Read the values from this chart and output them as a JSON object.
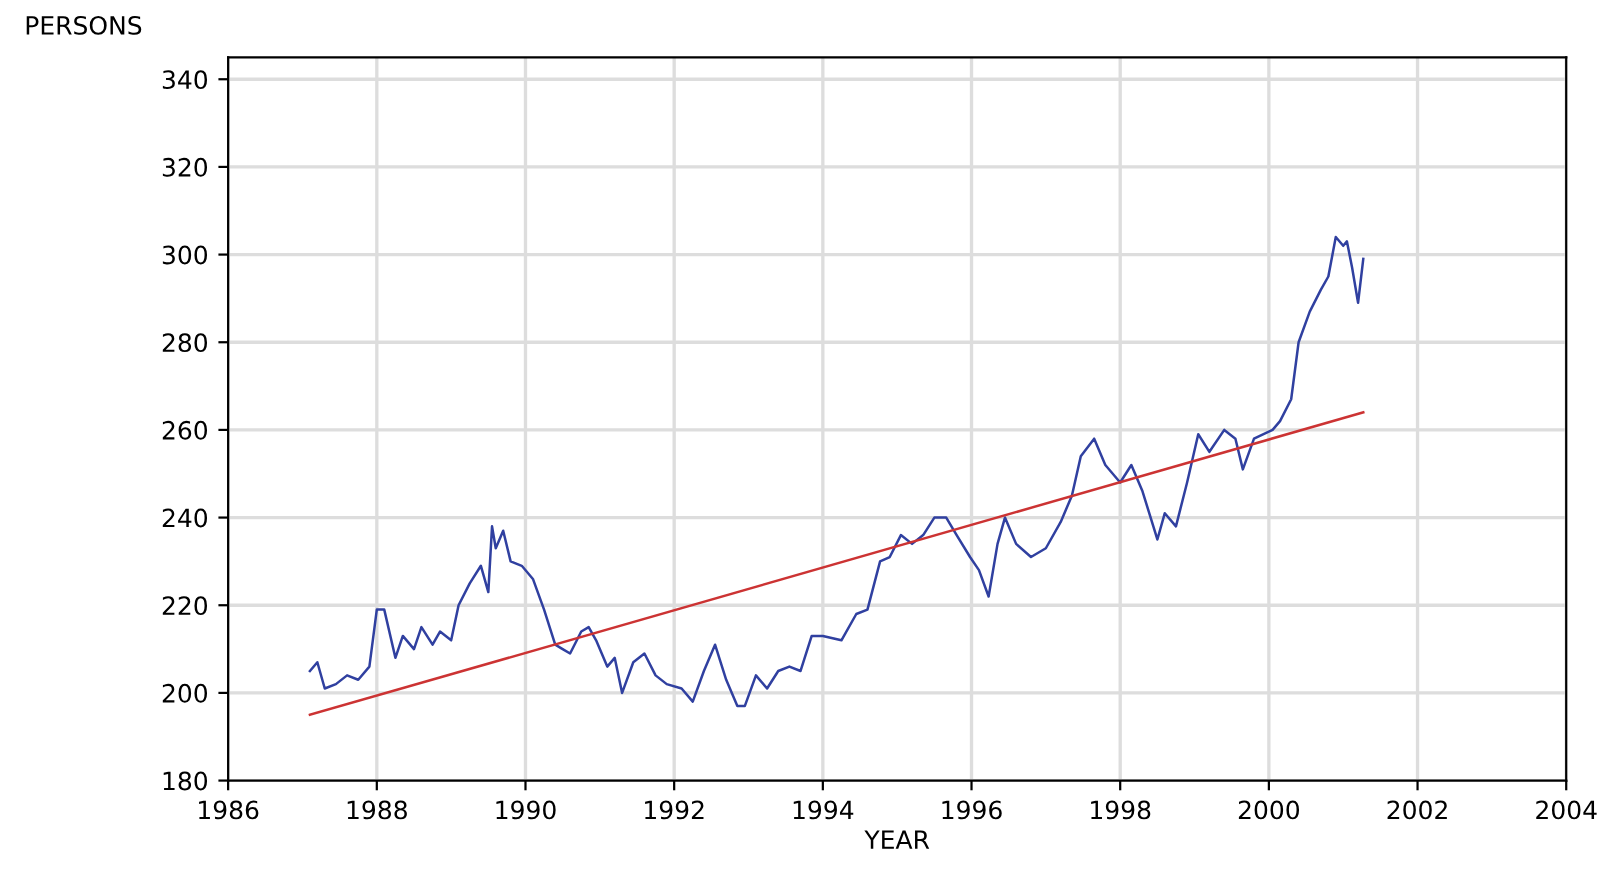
{
  "chart_data": {
    "type": "line",
    "ylabel": "PERSONS",
    "xlabel": "YEAR",
    "xlim": [
      1986,
      2004
    ],
    "xticks": [
      1986,
      1988,
      1990,
      1992,
      1994,
      1996,
      1998,
      2000,
      2002,
      2004
    ],
    "ylim": [
      180,
      345
    ],
    "yticks": [
      180,
      200,
      220,
      240,
      260,
      280,
      300,
      320,
      340
    ],
    "grid": true,
    "marker": "none",
    "line_style": "solid",
    "series": [
      {
        "color": "#3040a0",
        "x": [
          1987.1,
          1987.2,
          1987.3,
          1987.45,
          1987.6,
          1987.75,
          1987.9,
          1988.0,
          1988.1,
          1988.25,
          1988.35,
          1988.5,
          1988.6,
          1988.75,
          1988.85,
          1989.0,
          1989.1,
          1989.25,
          1989.4,
          1989.5,
          1989.55,
          1989.6,
          1989.7,
          1989.8,
          1989.95,
          1990.1,
          1990.25,
          1990.4,
          1990.5,
          1990.6,
          1990.75,
          1990.85,
          1990.95,
          1991.1,
          1991.2,
          1991.3,
          1991.45,
          1991.6,
          1991.75,
          1991.9,
          1992.1,
          1992.25,
          1992.4,
          1992.55,
          1992.7,
          1992.85,
          1992.95,
          1993.1,
          1993.25,
          1993.4,
          1993.55,
          1993.7,
          1993.85,
          1994.0,
          1994.25,
          1994.45,
          1994.6,
          1994.77,
          1994.9,
          1995.05,
          1995.2,
          1995.35,
          1995.5,
          1995.66,
          1995.8,
          1995.98,
          1996.1,
          1996.23,
          1996.35,
          1996.45,
          1996.6,
          1996.8,
          1997.0,
          1997.2,
          1997.35,
          1997.47,
          1997.65,
          1997.8,
          1998.0,
          1998.15,
          1998.3,
          1998.5,
          1998.6,
          1998.75,
          1998.9,
          1999.05,
          1999.2,
          1999.4,
          1999.55,
          1999.65,
          1999.8,
          2000.05,
          2000.15,
          2000.3,
          2000.4,
          2000.55,
          2000.7,
          2000.8,
          2000.9,
          2001.0,
          2001.05,
          2001.12,
          2001.2,
          2001.27
        ],
        "values": [
          205,
          207,
          201,
          202,
          204,
          203,
          206,
          219,
          219,
          208,
          213,
          210,
          215,
          211,
          214,
          212,
          220,
          225,
          229,
          223,
          238,
          233,
          237,
          230,
          229,
          226,
          219,
          211,
          210,
          209,
          214,
          215,
          212,
          206,
          208,
          200,
          207,
          209,
          204,
          202,
          201,
          198,
          205,
          211,
          203,
          197,
          197,
          204,
          201,
          205,
          206,
          205,
          213,
          213,
          212,
          218,
          219,
          230,
          231,
          236,
          234,
          236,
          240,
          240,
          236,
          231,
          228,
          222,
          234,
          240,
          234,
          231,
          233,
          239,
          245,
          254,
          258,
          252,
          248,
          252,
          246,
          235,
          241,
          238,
          248,
          259,
          255,
          260,
          258,
          251,
          258,
          260,
          262,
          267,
          280,
          287,
          292,
          295,
          304,
          302,
          303,
          297,
          289,
          299
        ]
      },
      {
        "color": "#cc3333",
        "x": [
          1987.1,
          2001.27
        ],
        "values": [
          195,
          264
        ]
      }
    ]
  }
}
